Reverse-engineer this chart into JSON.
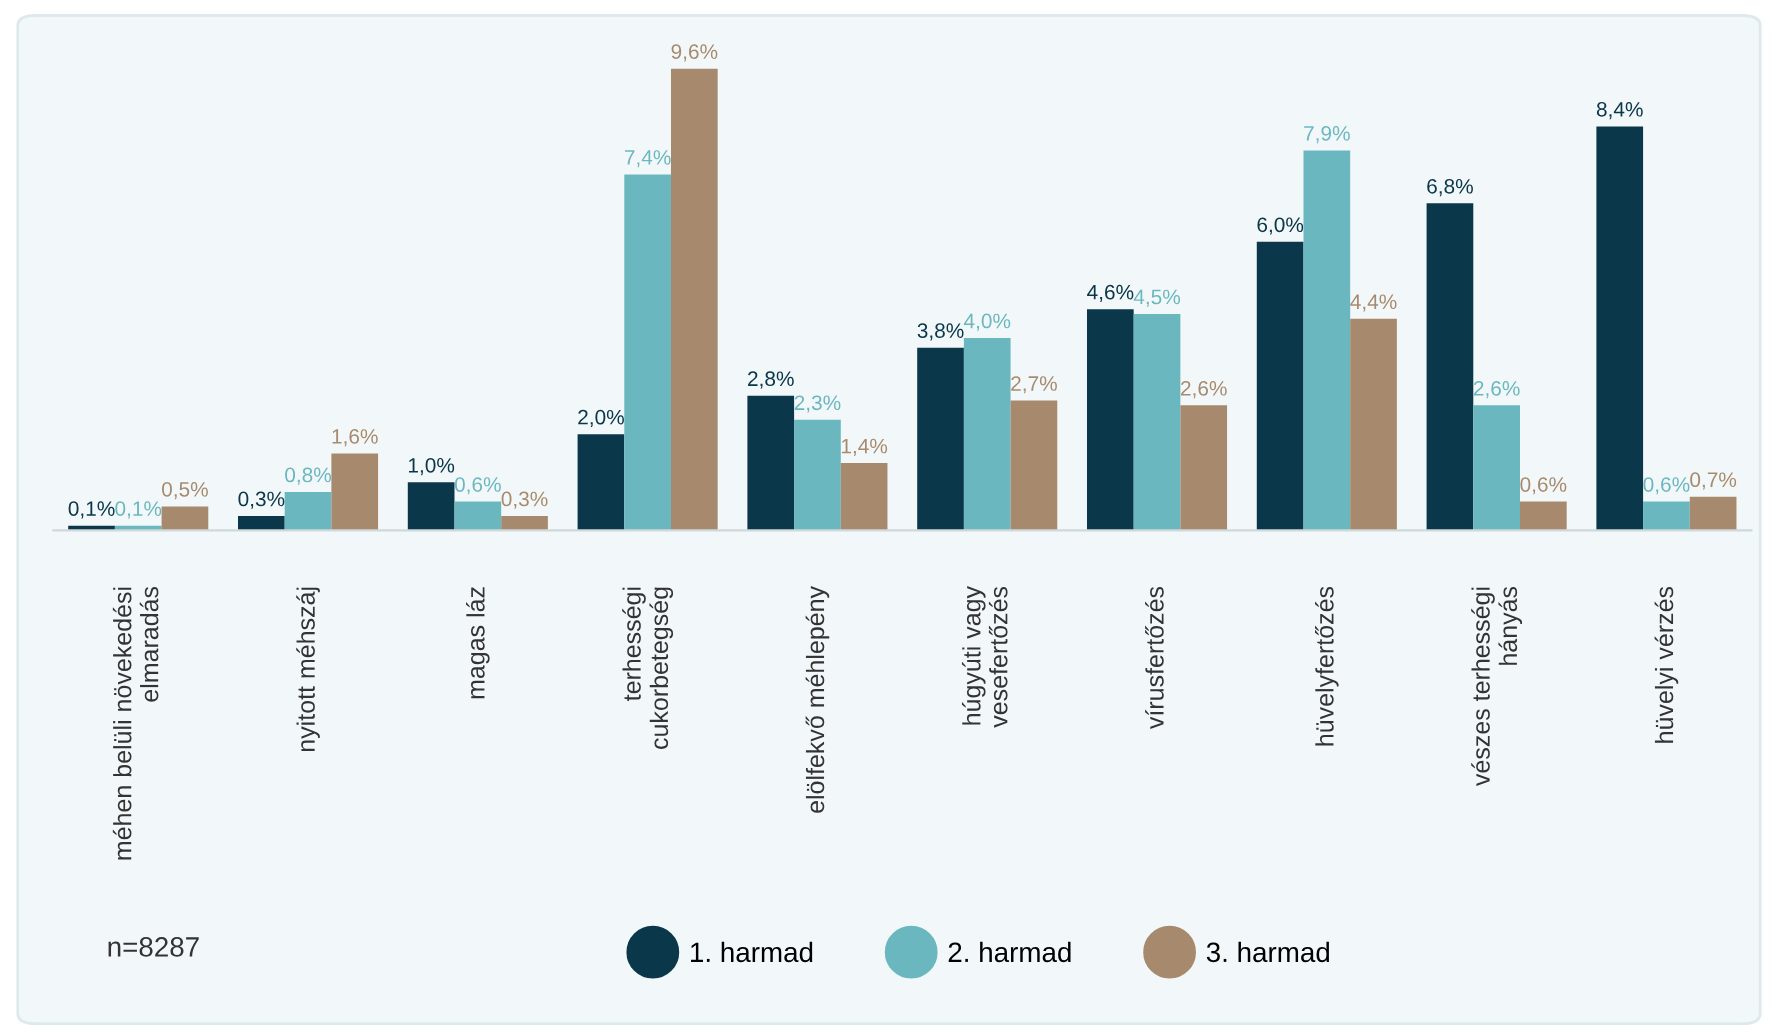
{
  "chart_data": {
    "type": "bar",
    "categories": [
      "méhen belüli növekedési\nelmaradás",
      "nyitott méhszáj",
      "magas láz",
      "terhességi\ncukorbetegség",
      "elölfekvő méhlepény",
      "húgyúti vagy\nvesefertőzés",
      "vírusfertőzés",
      "hüvelyfertőzés",
      "vészes terhességi\nhányás",
      "hüvelyi vérzés"
    ],
    "series": [
      {
        "name": "1. harmad",
        "color": "#0b374b",
        "values": [
          0.1,
          0.3,
          1.0,
          2.0,
          2.8,
          3.8,
          4.6,
          6.0,
          6.8,
          8.4
        ],
        "value_labels": [
          "0,1%",
          "0,3%",
          "1,0%",
          "2,0%",
          "2,8%",
          "3,8%",
          "4,6%",
          "6,0%",
          "6,8%",
          "8,4%"
        ]
      },
      {
        "name": "2. harmad",
        "color": "#6ab7bf",
        "values": [
          0.1,
          0.8,
          0.6,
          7.4,
          2.3,
          4.0,
          4.5,
          7.9,
          2.6,
          0.6
        ],
        "value_labels": [
          "0,1%",
          "0,8%",
          "0,6%",
          "7,4%",
          "2,3%",
          "4,0%",
          "4,5%",
          "7,9%",
          "2,6%",
          "0,6%"
        ]
      },
      {
        "name": "3. harmad",
        "color": "#a78a6d",
        "values": [
          0.5,
          1.6,
          0.3,
          9.6,
          1.4,
          2.7,
          2.6,
          4.4,
          0.6,
          0.7
        ],
        "value_labels": [
          "0,5%",
          "1,6%",
          "0,3%",
          "9,6%",
          "1,4%",
          "2,7%",
          "2,6%",
          "4,4%",
          "0,6%",
          "0,7%"
        ]
      }
    ],
    "annotations": [
      "n=8287"
    ],
    "legend": "bottom",
    "grid": false
  }
}
